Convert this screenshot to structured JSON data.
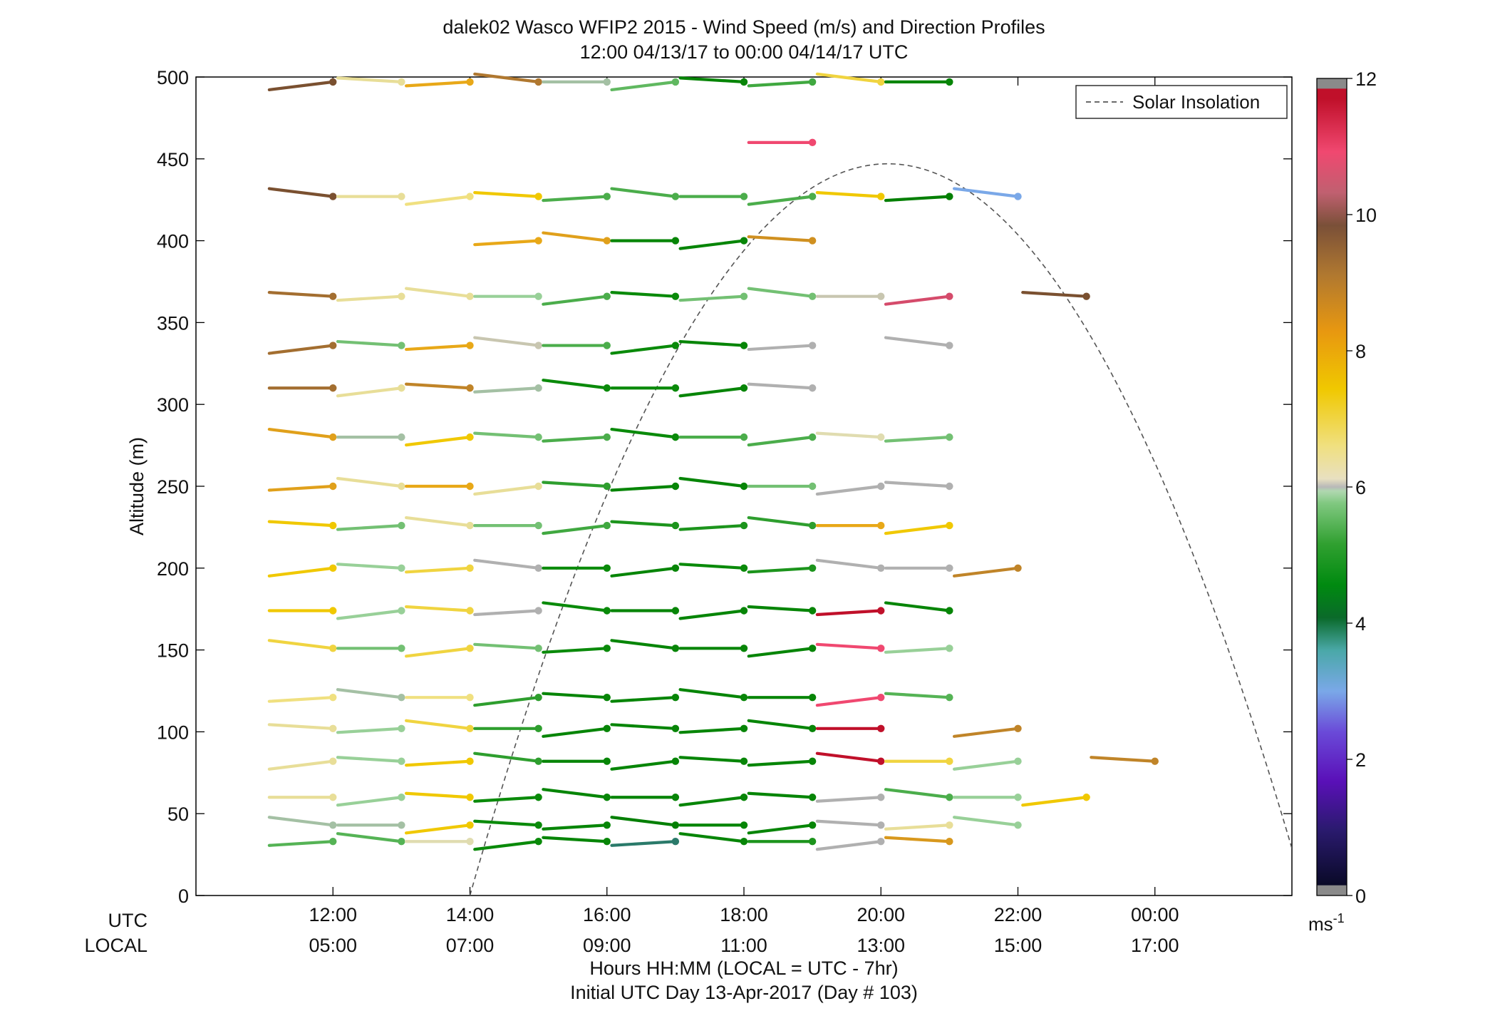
{
  "chart_data": {
    "type": "wind-barb profile",
    "title": "dalek02 Wasco WFIP2 2015 - Wind Speed (m/s) and Direction Profiles",
    "subtitle": "12:00 04/13/17 to 00:00 04/14/17  UTC",
    "ylabel": "Altitude (m)",
    "xlabel": "Hours HH:MM  (LOCAL = UTC - 7hr)",
    "xlabel2": "Initial UTC Day 13-Apr-2017 (Day # 103)",
    "utc_label": "UTC",
    "local_label": "LOCAL",
    "ylim": [
      0,
      500
    ],
    "xlim_hours": [
      10,
      26
    ],
    "y_ticks": [
      0,
      50,
      100,
      150,
      200,
      250,
      300,
      350,
      400,
      450,
      500
    ],
    "x_ticks": [
      {
        "h": 12,
        "utc": "12:00",
        "local": "05:00"
      },
      {
        "h": 14,
        "utc": "14:00",
        "local": "07:00"
      },
      {
        "h": 16,
        "utc": "16:00",
        "local": "09:00"
      },
      {
        "h": 18,
        "utc": "18:00",
        "local": "11:00"
      },
      {
        "h": 20,
        "utc": "20:00",
        "local": "13:00"
      },
      {
        "h": 22,
        "utc": "22:00",
        "local": "15:00"
      },
      {
        "h": 24,
        "utc": "00:00",
        "local": "17:00"
      }
    ],
    "legend": {
      "label": "Solar Insolation",
      "position": "top-right"
    },
    "colorbar": {
      "min": 0,
      "max": 12,
      "ticks": [
        0,
        2,
        4,
        6,
        8,
        10,
        12
      ],
      "unit": "ms",
      "unit_exp": "-1"
    },
    "colors": {
      "speed_4": "#007a00",
      "speed_6": "#e0e0a0",
      "speed_8": "#e8a010",
      "speed_10": "#7a5030",
      "speed_12": "#c0102a"
    },
    "solar_insolation": {
      "sunrise_h": 14.0,
      "peak_h": 20.1,
      "peak_altitude": 447,
      "at_right_edge_altitude": 38
    },
    "series_note": "each row: [altitude_m, [[hour_utc, speed_ms], ...]]",
    "profiles": [
      [
        497,
        [
          [
            12,
            9.6
          ],
          [
            13,
            6.6
          ],
          [
            14,
            7.8
          ],
          [
            15,
            8.8
          ],
          [
            16,
            5.8
          ],
          [
            17,
            5.0
          ],
          [
            18,
            3.6
          ],
          [
            19,
            4.4
          ],
          [
            20,
            7.0
          ],
          [
            21,
            3.6
          ]
        ]
      ],
      [
        460,
        [
          [
            19,
            10.8
          ]
        ]
      ],
      [
        427,
        [
          [
            12,
            9.6
          ],
          [
            13,
            6.6
          ],
          [
            14,
            6.8
          ],
          [
            15,
            7.2
          ],
          [
            16,
            4.6
          ],
          [
            17,
            4.6
          ],
          [
            18,
            4.6
          ],
          [
            19,
            4.6
          ],
          [
            20,
            7.2
          ],
          [
            21,
            3.4
          ],
          [
            22,
            2.2
          ]
        ]
      ],
      [
        400,
        [
          [
            15,
            7.8
          ],
          [
            16,
            8.0
          ],
          [
            17,
            3.6
          ],
          [
            18,
            3.6
          ],
          [
            19,
            8.4
          ]
        ]
      ],
      [
        366,
        [
          [
            12,
            9.0
          ],
          [
            13,
            6.6
          ],
          [
            14,
            6.6
          ],
          [
            15,
            5.6
          ],
          [
            16,
            4.6
          ],
          [
            17,
            3.8
          ],
          [
            18,
            5.2
          ],
          [
            19,
            5.2
          ],
          [
            20,
            6.2
          ],
          [
            21,
            10.6
          ],
          [
            23,
            9.6
          ]
        ]
      ],
      [
        336,
        [
          [
            12,
            9.0
          ],
          [
            13,
            5.2
          ],
          [
            14,
            7.8
          ],
          [
            15,
            6.2
          ],
          [
            16,
            4.6
          ],
          [
            17,
            3.8
          ],
          [
            18,
            3.6
          ],
          [
            19,
            6.0
          ],
          [
            21,
            6.0
          ]
        ]
      ],
      [
        310,
        [
          [
            12,
            9.0
          ],
          [
            13,
            6.6
          ],
          [
            14,
            8.6
          ],
          [
            15,
            5.8
          ],
          [
            16,
            3.8
          ],
          [
            17,
            3.8
          ],
          [
            18,
            3.6
          ],
          [
            19,
            6.0
          ]
        ]
      ],
      [
        280,
        [
          [
            12,
            8.0
          ],
          [
            13,
            5.8
          ],
          [
            14,
            7.2
          ],
          [
            15,
            5.2
          ],
          [
            16,
            4.6
          ],
          [
            17,
            3.8
          ],
          [
            18,
            4.6
          ],
          [
            19,
            4.6
          ],
          [
            20,
            6.4
          ],
          [
            21,
            5.2
          ]
        ]
      ],
      [
        250,
        [
          [
            12,
            8.0
          ],
          [
            13,
            6.6
          ],
          [
            14,
            7.8
          ],
          [
            15,
            6.6
          ],
          [
            16,
            4.2
          ],
          [
            17,
            3.6
          ],
          [
            18,
            3.6
          ],
          [
            19,
            5.2
          ],
          [
            20,
            6.0
          ],
          [
            21,
            6.0
          ]
        ]
      ],
      [
        226,
        [
          [
            12,
            7.2
          ],
          [
            13,
            5.2
          ],
          [
            14,
            6.6
          ],
          [
            15,
            5.2
          ],
          [
            16,
            4.4
          ],
          [
            17,
            4.0
          ],
          [
            18,
            4.0
          ],
          [
            19,
            4.2
          ],
          [
            20,
            7.8
          ],
          [
            21,
            7.2
          ]
        ]
      ],
      [
        200,
        [
          [
            12,
            7.2
          ],
          [
            13,
            5.6
          ],
          [
            14,
            7.0
          ],
          [
            15,
            6.0
          ],
          [
            16,
            3.8
          ],
          [
            17,
            3.6
          ],
          [
            18,
            3.8
          ],
          [
            19,
            4.0
          ],
          [
            20,
            6.0
          ],
          [
            21,
            6.0
          ],
          [
            22,
            8.6
          ]
        ]
      ],
      [
        174,
        [
          [
            12,
            7.2
          ],
          [
            13,
            5.6
          ],
          [
            14,
            7.0
          ],
          [
            15,
            6.0
          ],
          [
            16,
            3.8
          ],
          [
            17,
            3.6
          ],
          [
            18,
            3.6
          ],
          [
            19,
            3.6
          ],
          [
            20,
            11.8
          ],
          [
            21,
            3.6
          ]
        ]
      ],
      [
        151,
        [
          [
            12,
            7.0
          ],
          [
            13,
            5.2
          ],
          [
            14,
            7.0
          ],
          [
            15,
            5.2
          ],
          [
            16,
            3.8
          ],
          [
            17,
            3.6
          ],
          [
            18,
            3.6
          ],
          [
            19,
            3.6
          ],
          [
            20,
            10.8
          ],
          [
            21,
            5.6
          ]
        ]
      ],
      [
        121,
        [
          [
            12,
            6.8
          ],
          [
            13,
            5.8
          ],
          [
            14,
            6.8
          ],
          [
            15,
            4.2
          ],
          [
            16,
            3.6
          ],
          [
            17,
            3.6
          ],
          [
            18,
            3.6
          ],
          [
            19,
            3.6
          ],
          [
            20,
            10.8
          ],
          [
            21,
            4.8
          ]
        ]
      ],
      [
        102,
        [
          [
            12,
            6.6
          ],
          [
            13,
            5.6
          ],
          [
            14,
            7.0
          ],
          [
            15,
            4.2
          ],
          [
            16,
            3.6
          ],
          [
            17,
            3.6
          ],
          [
            18,
            3.6
          ],
          [
            19,
            3.6
          ],
          [
            20,
            11.8
          ],
          [
            22,
            8.6
          ]
        ]
      ],
      [
        82,
        [
          [
            12,
            6.6
          ],
          [
            13,
            5.6
          ],
          [
            14,
            7.2
          ],
          [
            15,
            4.2
          ],
          [
            16,
            3.6
          ],
          [
            17,
            3.6
          ],
          [
            18,
            3.6
          ],
          [
            19,
            3.6
          ],
          [
            20,
            11.8
          ],
          [
            21,
            7.0
          ],
          [
            22,
            5.6
          ],
          [
            24,
            8.6
          ]
        ]
      ],
      [
        60,
        [
          [
            12,
            6.6
          ],
          [
            13,
            5.6
          ],
          [
            14,
            7.2
          ],
          [
            15,
            3.8
          ],
          [
            16,
            3.6
          ],
          [
            17,
            3.6
          ],
          [
            18,
            3.6
          ],
          [
            19,
            3.6
          ],
          [
            20,
            6.0
          ],
          [
            21,
            4.6
          ],
          [
            22,
            5.6
          ],
          [
            23,
            7.2
          ]
        ]
      ],
      [
        43,
        [
          [
            12,
            5.8
          ],
          [
            13,
            5.8
          ],
          [
            14,
            7.2
          ],
          [
            15,
            3.8
          ],
          [
            16,
            3.6
          ],
          [
            17,
            3.4
          ],
          [
            18,
            3.6
          ],
          [
            19,
            3.6
          ],
          [
            20,
            6.0
          ],
          [
            21,
            6.6
          ],
          [
            22,
            5.6
          ]
        ]
      ],
      [
        33,
        [
          [
            12,
            4.8
          ],
          [
            13,
            4.8
          ],
          [
            14,
            6.4
          ],
          [
            15,
            3.8
          ],
          [
            16,
            3.6
          ],
          [
            17,
            2.8
          ],
          [
            18,
            3.6
          ],
          [
            19,
            4.0
          ],
          [
            20,
            6.0
          ],
          [
            21,
            8.2
          ]
        ]
      ]
    ]
  }
}
